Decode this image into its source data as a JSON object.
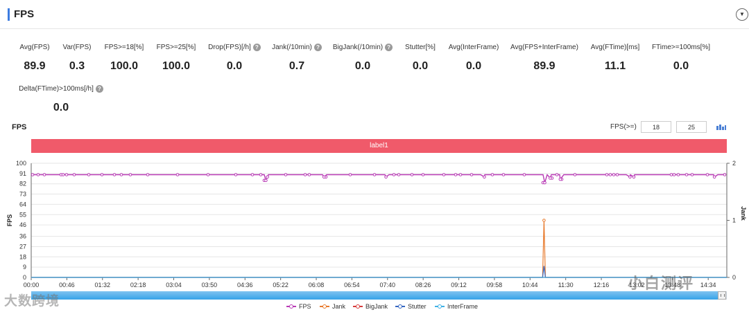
{
  "header": {
    "title": "FPS"
  },
  "metrics": [
    {
      "label": "Avg(FPS)",
      "value": "89.9"
    },
    {
      "label": "Var(FPS)",
      "value": "0.3"
    },
    {
      "label": "FPS>=18[%]",
      "value": "100.0"
    },
    {
      "label": "FPS>=25[%]",
      "value": "100.0"
    },
    {
      "label": "Drop(FPS)[/h]",
      "value": "0.0"
    },
    {
      "label": "Jank(/10min)",
      "value": "0.7"
    },
    {
      "label": "BigJank(/10min)",
      "value": "0.0"
    },
    {
      "label": "Stutter[%]",
      "value": "0.0"
    },
    {
      "label": "Avg(InterFrame)",
      "value": "0.0"
    },
    {
      "label": "Avg(FPS+InterFrame)",
      "value": "89.9"
    },
    {
      "label": "Avg(FTime)[ms]",
      "value": "11.1"
    },
    {
      "label": "FTime>=100ms[%]",
      "value": "0.0"
    },
    {
      "label": "Delta(FTime)>100ms[/h]",
      "value": "0.0"
    }
  ],
  "chart": {
    "title": "FPS",
    "threshold_label": "FPS(>=)",
    "threshold_low": "18",
    "threshold_high": "25",
    "label_band": "label1"
  },
  "watermarks": {
    "left": "大数跨境",
    "right": "小白测评"
  },
  "chart_data": {
    "type": "line",
    "xlabel": "",
    "ylabel": "FPS",
    "y2label": "Jank",
    "x_ticks": [
      "00:00",
      "00:46",
      "01:32",
      "02:18",
      "03:04",
      "03:50",
      "04:36",
      "05:22",
      "06:08",
      "06:54",
      "07:40",
      "08:26",
      "09:12",
      "09:58",
      "10:44",
      "11:30",
      "12:16",
      "13:02",
      "13:48",
      "14:34"
    ],
    "y_ticks": [
      0,
      9,
      18,
      27,
      36,
      46,
      55,
      64,
      73,
      82,
      91,
      100
    ],
    "y2_ticks": [
      0,
      1,
      2
    ],
    "ylim": [
      0,
      100
    ],
    "y2lim": [
      0,
      2
    ],
    "grid": true,
    "legend_position": "bottom",
    "series": [
      {
        "name": "FPS",
        "color": "#b83ab5",
        "axis": "left",
        "baseline": 90,
        "dips": [
          {
            "x": "05:03",
            "value": 85
          },
          {
            "x": "05:05",
            "value": 88
          },
          {
            "x": "06:18",
            "value": 88
          },
          {
            "x": "07:38",
            "value": 88
          },
          {
            "x": "09:45",
            "value": 88
          },
          {
            "x": "11:03",
            "value": 83
          },
          {
            "x": "11:10",
            "value": 87
          },
          {
            "x": "11:23",
            "value": 86
          },
          {
            "x": "12:53",
            "value": 88
          },
          {
            "x": "12:58",
            "value": 88
          },
          {
            "x": "14:42",
            "value": 88
          }
        ]
      },
      {
        "name": "Jank",
        "color": "#e87a2c",
        "axis": "right",
        "baseline": 0,
        "spikes": [
          {
            "x": "11:02",
            "value": 1
          }
        ]
      },
      {
        "name": "BigJank",
        "color": "#d63b3b",
        "axis": "right",
        "baseline": 0
      },
      {
        "name": "Stutter",
        "color": "#3466c2",
        "axis": "right",
        "baseline": 0,
        "spikes": [
          {
            "x": "11:02",
            "value": 0.2
          }
        ]
      },
      {
        "name": "InterFrame",
        "color": "#3fb1e6",
        "axis": "right",
        "baseline": 0
      }
    ]
  }
}
